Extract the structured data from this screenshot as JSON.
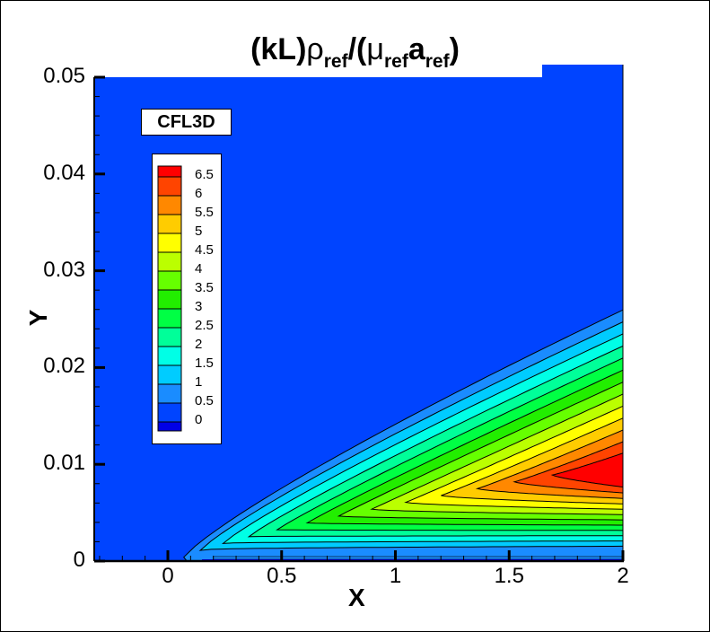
{
  "chart_data": {
    "type": "heatmap",
    "subtype": "filled-contour",
    "title": "(kL)ρ_ref/(μ_ref a_ref)",
    "title_parts": [
      {
        "text": "(kL)",
        "style": "bold"
      },
      {
        "text": "ρ",
        "style": "symbol"
      },
      {
        "text": "ref",
        "style": "sub"
      },
      {
        "text": "/(",
        "style": "bold"
      },
      {
        "text": "μ",
        "style": "symbol"
      },
      {
        "text": "ref",
        "style": "sub"
      },
      {
        "text": "a",
        "style": "bold"
      },
      {
        "text": "ref",
        "style": "sub"
      },
      {
        "text": ")",
        "style": "bold"
      }
    ],
    "annotation": "CFL3D",
    "xlabel": "X",
    "ylabel": "Y",
    "xlim": [
      -0.32,
      2.0
    ],
    "ylim": [
      0,
      0.05
    ],
    "xticks": [
      "0",
      "0.5",
      "1",
      "1.5",
      "2"
    ],
    "xtick_values": [
      0,
      0.5,
      1,
      1.5,
      2
    ],
    "yticks": [
      "0",
      "0.01",
      "0.02",
      "0.03",
      "0.04",
      "0.05"
    ],
    "ytick_values": [
      0,
      0.01,
      0.02,
      0.03,
      0.04,
      0.05
    ],
    "grid": false,
    "legend_position": "upper-left inside plot",
    "contour_levels": [
      0,
      0.5,
      1,
      1.5,
      2,
      2.5,
      3,
      3.5,
      4,
      4.5,
      5,
      5.5,
      6,
      6.5
    ],
    "legend_labels": [
      "6.5",
      "6",
      "5.5",
      "5",
      "4.5",
      "4",
      "3.5",
      "3",
      "2.5",
      "2",
      "1.5",
      "1",
      "0.5",
      "0"
    ],
    "colormap": [
      "#0000e6",
      "#0044ff",
      "#1a8cff",
      "#00ccff",
      "#00ffe6",
      "#00ff99",
      "#00ff44",
      "#22ee00",
      "#66ff00",
      "#bbff00",
      "#ffff00",
      "#ffcc00",
      "#ff8800",
      "#ff4400",
      "#ff0000"
    ],
    "description": "Turbulent kinetic energy * length scale in a growing shear/boundary layer starting at x≈0.07; layer edge grows linearly to y≈0.026 at x=2; peak value >6.5 near x=2, y≈0.0095",
    "max_value_region": {
      "x": 2.0,
      "y": 0.0095,
      "value": ">6.5"
    },
    "layer_edge": [
      {
        "x": 0.07,
        "y": 0.0
      },
      {
        "x": 1.0,
        "y": 0.0125
      },
      {
        "x": 2.0,
        "y": 0.026
      }
    ]
  },
  "colors": {
    "background_field": "#0044ff",
    "contour_line": "#000000",
    "frame": "#000000"
  }
}
